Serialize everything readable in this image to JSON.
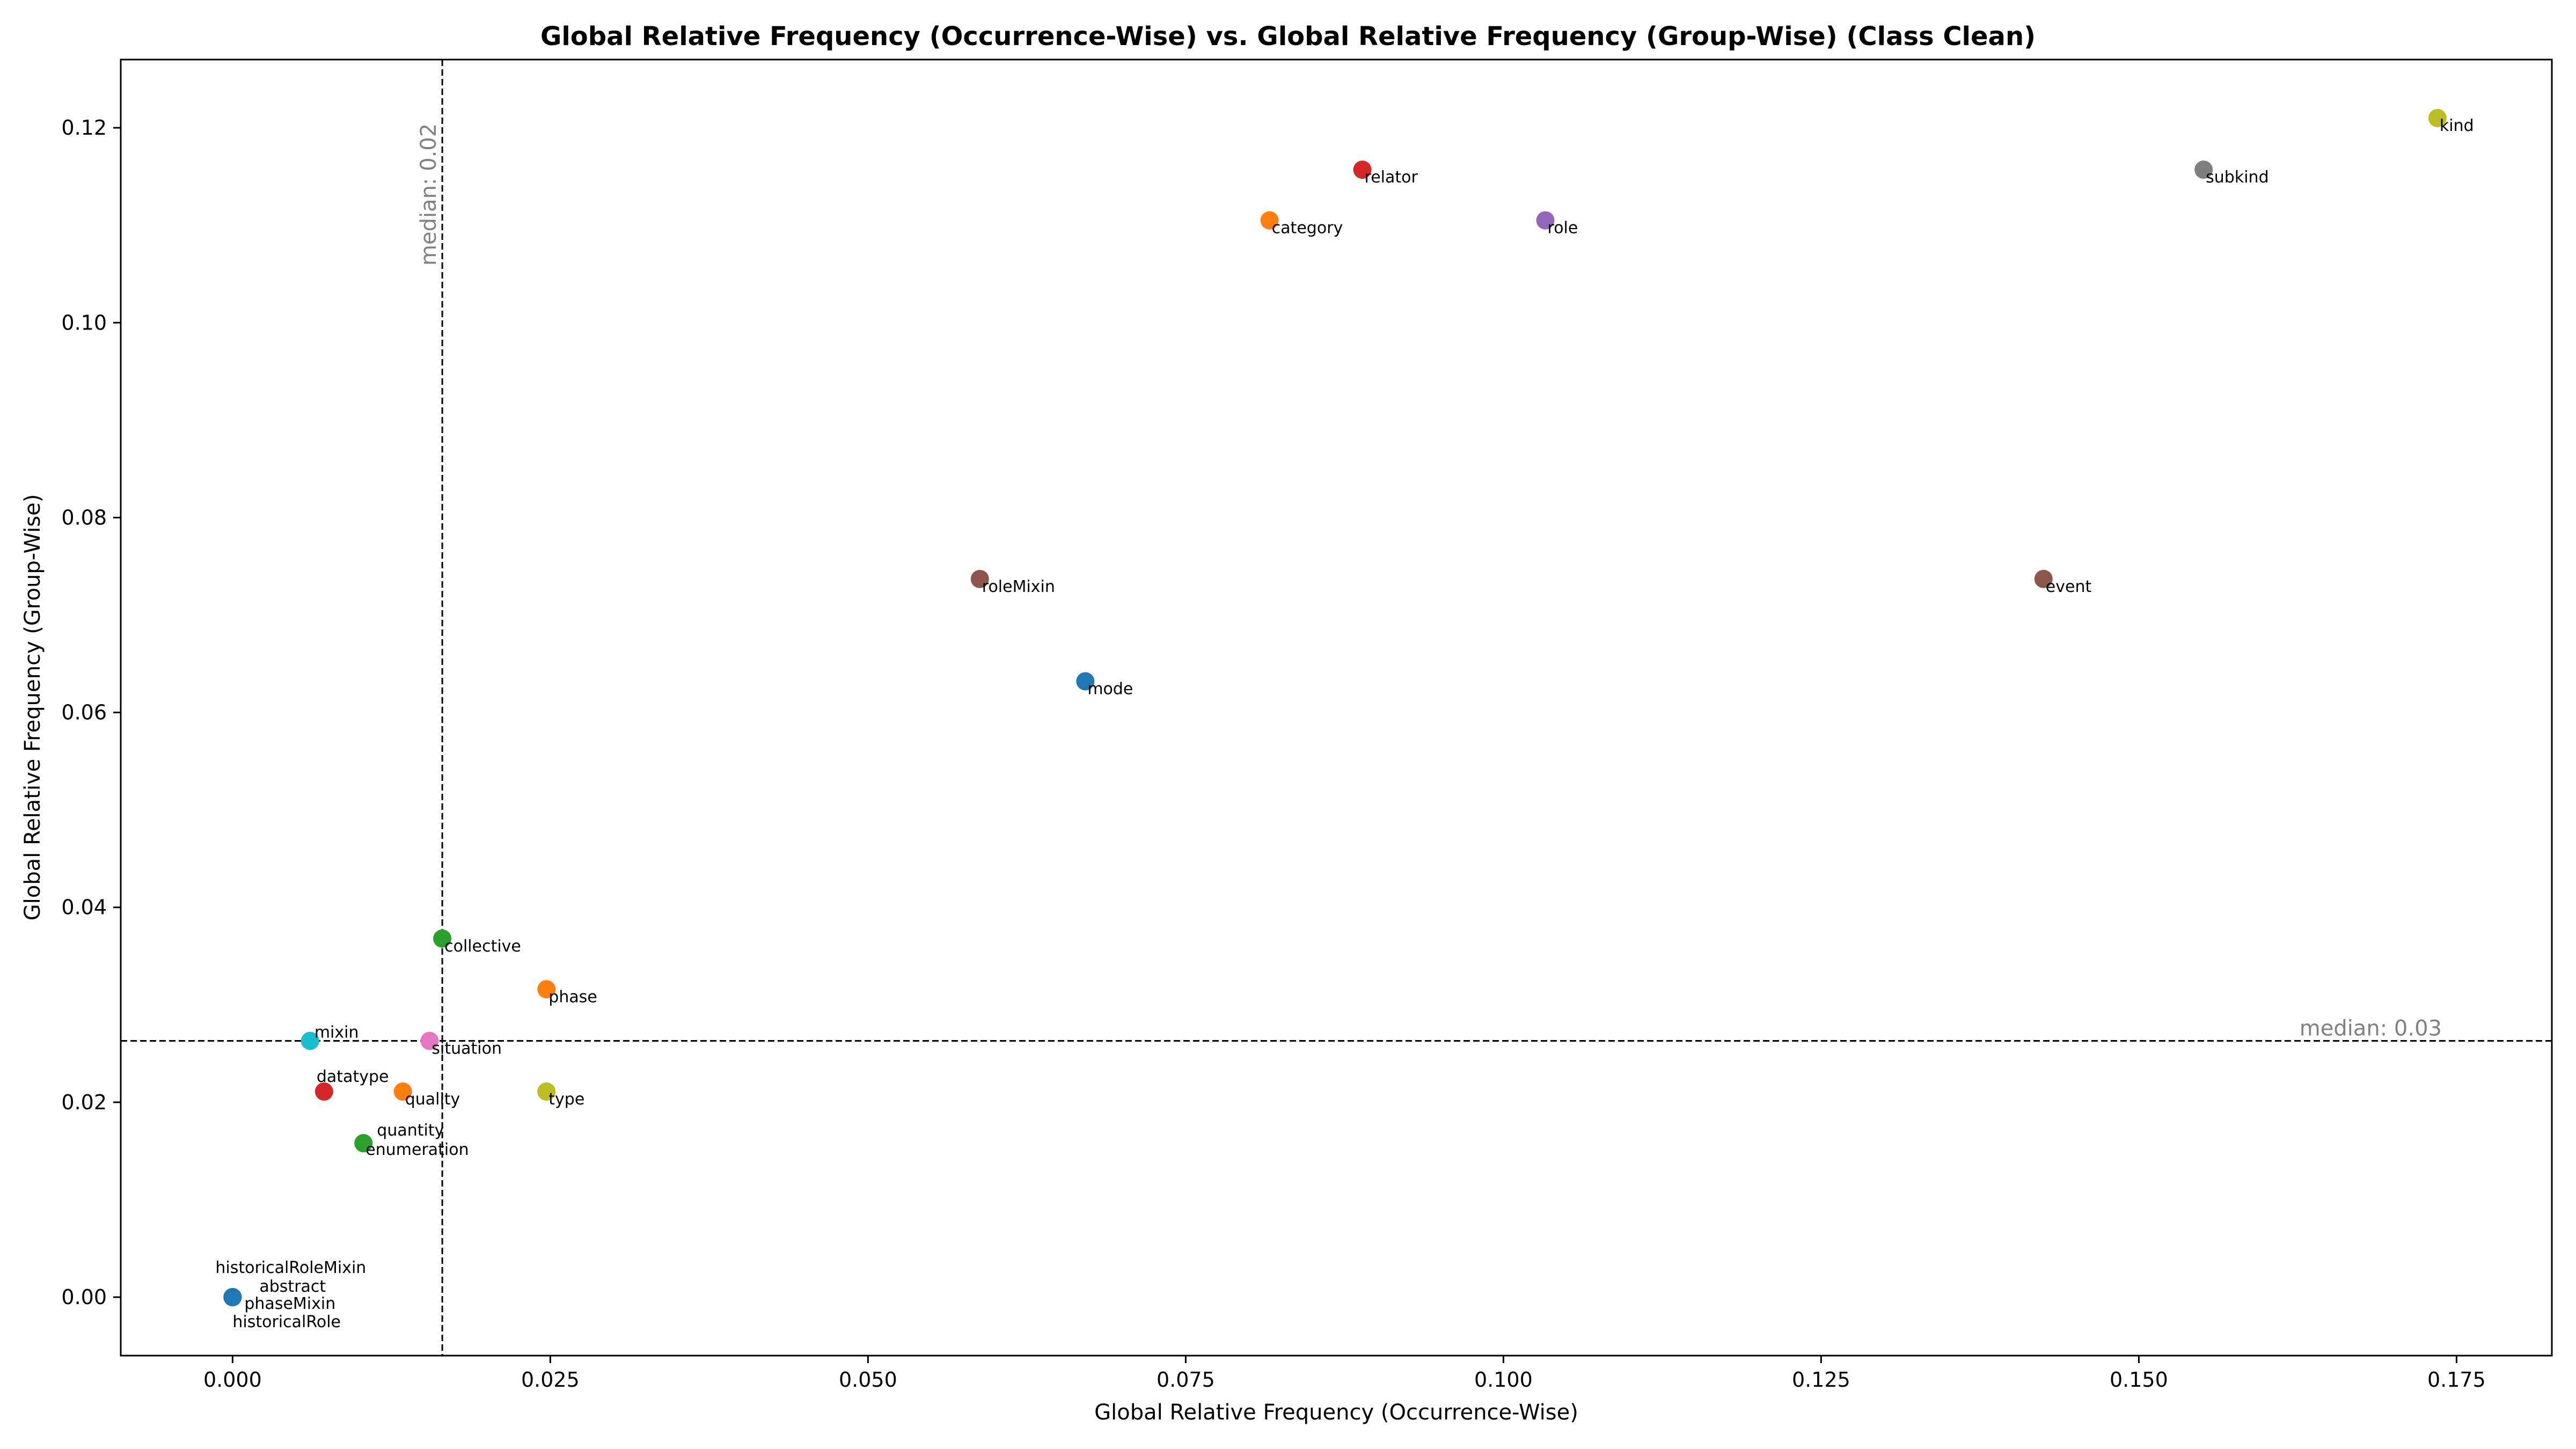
{
  "chart_data": {
    "type": "scatter",
    "title": "Global Relative Frequency (Occurrence-Wise) vs. Global Relative Frequency (Group-Wise) (Class Clean)",
    "xlabel": "Global Relative Frequency (Occurrence-Wise)",
    "ylabel": "Global Relative Frequency (Group-Wise)",
    "xlim": [
      -0.0088,
      0.1825
    ],
    "ylim": [
      -0.006,
      0.127
    ],
    "xticks": [
      0.0,
      0.025,
      0.05,
      0.075,
      0.1,
      0.125,
      0.15,
      0.175
    ],
    "xtick_labels": [
      "0.000",
      "0.025",
      "0.050",
      "0.075",
      "0.100",
      "0.125",
      "0.150",
      "0.175"
    ],
    "yticks": [
      0.0,
      0.02,
      0.04,
      0.06,
      0.08,
      0.1,
      0.12
    ],
    "ytick_labels": [
      "0.00",
      "0.02",
      "0.04",
      "0.06",
      "0.08",
      "0.10",
      "0.12"
    ],
    "grid": false,
    "medians": {
      "x": {
        "value": 0.0165,
        "label": "median: 0.02"
      },
      "y": {
        "value": 0.0263,
        "label": "median: 0.03"
      }
    },
    "points": [
      {
        "name": "kind",
        "x": 0.1735,
        "y": 0.121,
        "color": "#bcbd22"
      },
      {
        "name": "subkind",
        "x": 0.1551,
        "y": 0.1157,
        "color": "#7f7f7f"
      },
      {
        "name": "relator",
        "x": 0.0889,
        "y": 0.1157,
        "color": "#d62728"
      },
      {
        "name": "category",
        "x": 0.0816,
        "y": 0.1105,
        "color": "#ff7f0e"
      },
      {
        "name": "role",
        "x": 0.1033,
        "y": 0.1105,
        "color": "#9467bd"
      },
      {
        "name": "roleMixin",
        "x": 0.0588,
        "y": 0.0737,
        "color": "#8c564b"
      },
      {
        "name": "event",
        "x": 0.1425,
        "y": 0.0737,
        "color": "#8c564b"
      },
      {
        "name": "mode",
        "x": 0.0671,
        "y": 0.0632,
        "color": "#1f77b4"
      },
      {
        "name": "collective",
        "x": 0.0165,
        "y": 0.0368,
        "color": "#2ca02c"
      },
      {
        "name": "phase",
        "x": 0.0247,
        "y": 0.0316,
        "color": "#ff7f0e"
      },
      {
        "name": "mixin",
        "x": 0.0061,
        "y": 0.0263,
        "color": "#17becf"
      },
      {
        "name": "situation",
        "x": 0.0155,
        "y": 0.0263,
        "color": "#e377c2"
      },
      {
        "name": "datatype",
        "x": 0.0072,
        "y": 0.0211,
        "color": "#d62728"
      },
      {
        "name": "quality",
        "x": 0.0134,
        "y": 0.0211,
        "color": "#ff7f0e"
      },
      {
        "name": "type",
        "x": 0.0247,
        "y": 0.0211,
        "color": "#bcbd22"
      },
      {
        "name": "quantity",
        "x": 0.0103,
        "y": 0.0158,
        "color": "#2ca02c"
      },
      {
        "name": "enumeration",
        "x": 0.0103,
        "y": 0.0158,
        "color": "#2ca02c"
      },
      {
        "name": "historicalRoleMixin",
        "x": 0.0,
        "y": 0.0,
        "color": "#1f77b4"
      },
      {
        "name": "abstract",
        "x": 0.0,
        "y": 0.0,
        "color": "#1f77b4"
      },
      {
        "name": "phaseMixin",
        "x": 0.0,
        "y": 0.0,
        "color": "#1f77b4"
      },
      {
        "name": "historicalRole",
        "x": 0.0,
        "y": 0.0,
        "color": "#1f77b4"
      }
    ]
  }
}
